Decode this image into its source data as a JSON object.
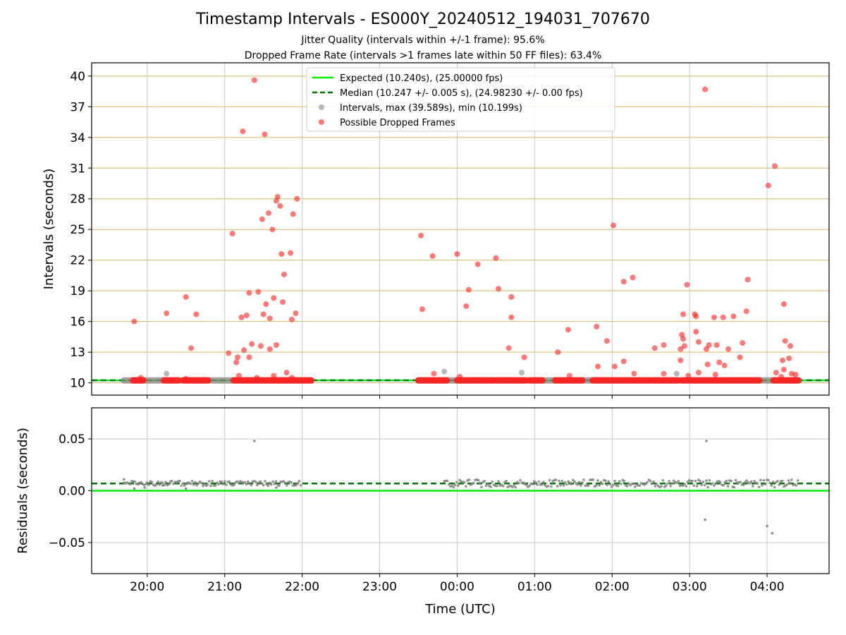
{
  "title": "Timestamp Intervals - ES000Y_20240512_194031_707670",
  "subtitle_1": "Jitter Quality (intervals within +/-1 frame): 95.6%",
  "subtitle_2": "Dropped Frame Rate (intervals >1 frames late within 50 FF files): 63.4%",
  "chart_data": [
    {
      "type": "scatter",
      "panel": "intervals",
      "ylabel": "Intervals (seconds)",
      "xlabel": "",
      "ylim": [
        8.8,
        41.3
      ],
      "yticks": [
        10,
        13,
        16,
        19,
        22,
        25,
        28,
        31,
        34,
        37,
        40
      ],
      "hlines_color": "#d4b86a",
      "legend_position": "top-center",
      "series": [
        {
          "name": "Expected (10.240s), (25.00000 fps)",
          "kind": "hline",
          "y": 10.24,
          "color": "#00ee00",
          "style": "solid"
        },
        {
          "name": "Median (10.247 +/- 0.005 s), (24.98230 +/- 0.00 fps)",
          "kind": "hline",
          "y": 10.247,
          "color": "#007700",
          "style": "dashed"
        },
        {
          "name": "Intervals, max (39.589s), min (10.199s)",
          "kind": "points",
          "color": "#888888",
          "points": [
            [
              "20:15",
              10.9
            ],
            [
              "23:50",
              11.1
            ],
            [
              "00:50",
              11.0
            ],
            [
              "02:50",
              10.9
            ]
          ],
          "band_segments": [
            [
              "19:42",
              "22:07"
            ],
            [
              "23:30",
              "04:25"
            ]
          ],
          "band_y": 10.24
        },
        {
          "name": "Possible Dropped Frames",
          "kind": "points",
          "color": "#ff2020",
          "points": [
            [
              "19:50",
              16.0
            ],
            [
              "19:55",
              10.5
            ],
            [
              "20:15",
              16.8
            ],
            [
              "20:30",
              18.4
            ],
            [
              "20:34",
              13.4
            ],
            [
              "20:38",
              16.7
            ],
            [
              "20:30",
              10.4
            ],
            [
              "21:03",
              12.9
            ],
            [
              "21:06",
              24.6
            ],
            [
              "21:09",
              12.0
            ],
            [
              "21:10",
              12.5
            ],
            [
              "21:11",
              10.7
            ],
            [
              "21:13",
              16.4
            ],
            [
              "21:14",
              34.6
            ],
            [
              "21:15",
              13.2
            ],
            [
              "21:17",
              16.6
            ],
            [
              "21:19",
              18.8
            ],
            [
              "21:19",
              12.5
            ],
            [
              "21:21",
              13.8
            ],
            [
              "21:23",
              39.6
            ],
            [
              "21:25",
              10.5
            ],
            [
              "21:26",
              18.9
            ],
            [
              "21:28",
              13.6
            ],
            [
              "21:29",
              26.0
            ],
            [
              "21:30",
              16.7
            ],
            [
              "21:31",
              34.3
            ],
            [
              "21:32",
              17.7
            ],
            [
              "21:34",
              26.6
            ],
            [
              "21:35",
              16.3
            ],
            [
              "21:35",
              13.3
            ],
            [
              "21:37",
              25.0
            ],
            [
              "21:38",
              18.3
            ],
            [
              "21:38",
              10.7
            ],
            [
              "21:40",
              13.7
            ],
            [
              "21:40",
              27.8
            ],
            [
              "21:41",
              28.2
            ],
            [
              "21:43",
              27.3
            ],
            [
              "21:44",
              22.6
            ],
            [
              "21:45",
              17.9
            ],
            [
              "21:46",
              20.6
            ],
            [
              "21:48",
              11.0
            ],
            [
              "21:51",
              22.7
            ],
            [
              "21:52",
              16.2
            ],
            [
              "21:53",
              26.5
            ],
            [
              "21:55",
              16.8
            ],
            [
              "21:56",
              28.0
            ],
            [
              "21:52",
              10.5
            ],
            [
              "23:32",
              24.4
            ],
            [
              "23:33",
              17.2
            ],
            [
              "23:41",
              22.4
            ],
            [
              "23:42",
              10.9
            ],
            [
              "00:00",
              22.6
            ],
            [
              "00:02",
              10.6
            ],
            [
              "00:07",
              17.5
            ],
            [
              "00:09",
              19.1
            ],
            [
              "00:16",
              21.6
            ],
            [
              "00:30",
              22.2
            ],
            [
              "00:32",
              19.2
            ],
            [
              "00:40",
              13.4
            ],
            [
              "00:42",
              18.4
            ],
            [
              "00:42",
              16.4
            ],
            [
              "00:52",
              12.5
            ],
            [
              "01:18",
              13.0
            ],
            [
              "01:26",
              15.2
            ],
            [
              "01:27",
              10.7
            ],
            [
              "01:48",
              15.5
            ],
            [
              "01:49",
              11.6
            ],
            [
              "01:56",
              14.1
            ],
            [
              "02:01",
              25.4
            ],
            [
              "02:02",
              11.6
            ],
            [
              "02:09",
              19.9
            ],
            [
              "02:09",
              12.1
            ],
            [
              "02:16",
              20.3
            ],
            [
              "02:17",
              10.9
            ],
            [
              "02:33",
              13.4
            ],
            [
              "02:40",
              13.7
            ],
            [
              "02:40",
              10.9
            ],
            [
              "02:53",
              12.2
            ],
            [
              "02:53",
              13.3
            ],
            [
              "02:54",
              14.7
            ],
            [
              "02:55",
              16.7
            ],
            [
              "02:55",
              14.3
            ],
            [
              "02:56",
              13.6
            ],
            [
              "02:58",
              19.6
            ],
            [
              "02:59",
              10.7
            ],
            [
              "03:04",
              16.7
            ],
            [
              "03:05",
              16.5
            ],
            [
              "03:05",
              15.0
            ],
            [
              "03:07",
              11.0
            ],
            [
              "03:07",
              14.0
            ],
            [
              "03:12",
              38.7
            ],
            [
              "03:13",
              13.3
            ],
            [
              "03:14",
              11.8
            ],
            [
              "03:15",
              13.7
            ],
            [
              "03:19",
              16.4
            ],
            [
              "03:20",
              10.8
            ],
            [
              "03:21",
              13.7
            ],
            [
              "03:23",
              12.0
            ],
            [
              "03:26",
              16.4
            ],
            [
              "03:27",
              11.7
            ],
            [
              "03:30",
              13.3
            ],
            [
              "03:34",
              16.5
            ],
            [
              "03:39",
              12.5
            ],
            [
              "03:41",
              13.9
            ],
            [
              "03:44",
              17.0
            ],
            [
              "03:45",
              20.1
            ],
            [
              "04:01",
              29.3
            ],
            [
              "04:06",
              31.2
            ],
            [
              "04:07",
              11.0
            ],
            [
              "04:11",
              10.6
            ],
            [
              "04:12",
              12.2
            ],
            [
              "04:13",
              11.3
            ],
            [
              "04:13",
              17.7
            ],
            [
              "04:14",
              14.1
            ],
            [
              "04:17",
              12.4
            ],
            [
              "04:18",
              13.6
            ],
            [
              "04:19",
              10.9
            ],
            [
              "04:22",
              10.8
            ]
          ],
          "band_segments": [
            [
              "19:49",
              "19:57"
            ],
            [
              "20:13",
              "20:24"
            ],
            [
              "20:28",
              "20:47"
            ],
            [
              "21:07",
              "22:07"
            ],
            [
              "23:30",
              "23:52"
            ],
            [
              "00:00",
              "00:28"
            ],
            [
              "00:30",
              "00:53"
            ],
            [
              "00:56",
              "01:06"
            ],
            [
              "01:16",
              "01:37"
            ],
            [
              "01:45",
              "02:29"
            ],
            [
              "02:31",
              "02:51"
            ],
            [
              "02:54",
              "03:54"
            ],
            [
              "04:05",
              "04:24"
            ]
          ],
          "band_y": 10.24
        }
      ]
    },
    {
      "type": "scatter",
      "panel": "residuals",
      "ylabel": "Residuals (seconds)",
      "xlabel": "Time (UTC)",
      "ylim": [
        -0.08,
        0.08
      ],
      "yticks": [
        -0.05,
        0.0,
        0.05
      ],
      "ytick_labels": [
        "−0.05",
        "0.00",
        "0.05"
      ],
      "grid": true,
      "series": [
        {
          "kind": "hline",
          "y": 0.0,
          "color": "#00ee00",
          "style": "solid"
        },
        {
          "kind": "hline",
          "y": 0.007,
          "color": "#007700",
          "style": "dashed"
        },
        {
          "kind": "points",
          "color": "#808080",
          "band_segments": [
            [
              "19:42",
              "22:00"
            ],
            [
              "23:50",
              "04:24"
            ]
          ],
          "band_center": 0.007,
          "points": [
            [
              "19:42",
              0.011
            ],
            [
              "19:50",
              0.002
            ],
            [
              "19:58",
              0.003
            ],
            [
              "20:12",
              0.005
            ],
            [
              "20:30",
              0.002
            ],
            [
              "21:23",
              0.048
            ],
            [
              "21:40",
              0.003
            ],
            [
              "03:12",
              -0.028
            ],
            [
              "03:13",
              0.048
            ],
            [
              "04:00",
              -0.034
            ],
            [
              "04:04",
              -0.041
            ]
          ]
        }
      ]
    }
  ],
  "x_axis": {
    "start": "19:17",
    "end": "04:48",
    "ticks": [
      "20:00",
      "21:00",
      "22:00",
      "23:00",
      "00:00",
      "01:00",
      "02:00",
      "03:00",
      "04:00"
    ]
  },
  "legend": [
    {
      "label": "Expected (10.240s), (25.00000 fps)",
      "marker": "line-solid",
      "color": "#00ee00"
    },
    {
      "label": "Median (10.247 +/- 0.005 s), (24.98230 +/- 0.00 fps)",
      "marker": "line-dashed",
      "color": "#007700"
    },
    {
      "label": "Intervals, max (39.589s), min (10.199s)",
      "marker": "dot",
      "color": "#888888"
    },
    {
      "label": "Possible Dropped Frames",
      "marker": "dot",
      "color": "#ff2020"
    }
  ]
}
